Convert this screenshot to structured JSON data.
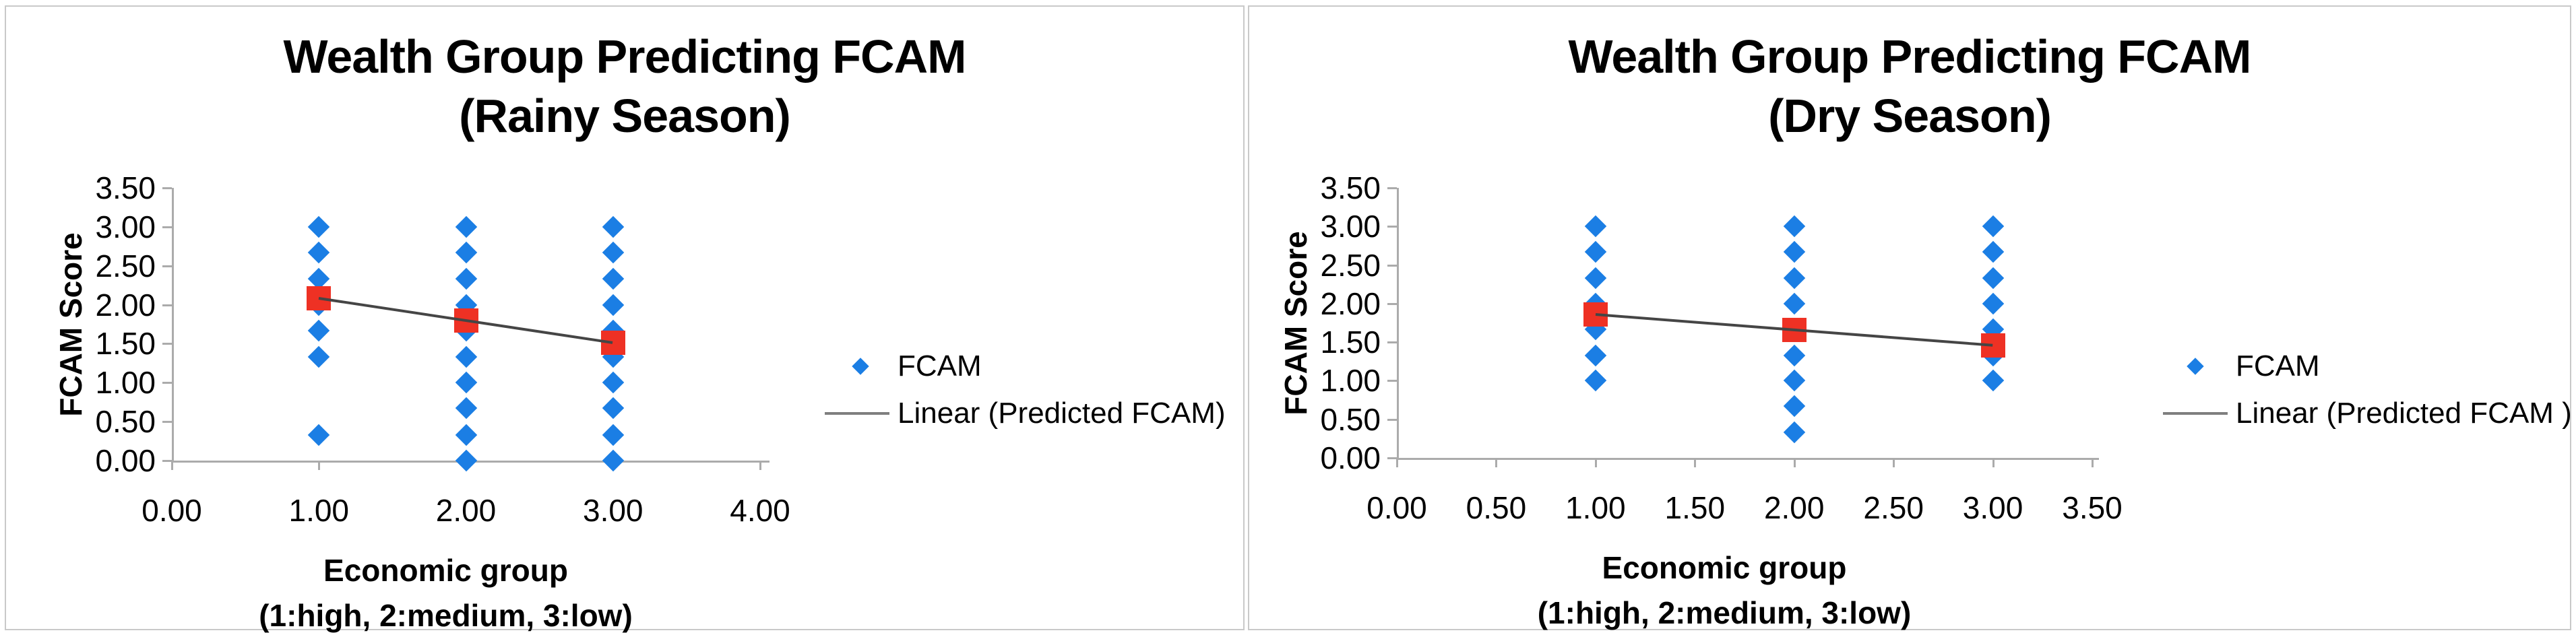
{
  "colors": {
    "marker_blue": "#1B7EE4",
    "marker_red": "#EE3124",
    "trendline_gray": "#454545",
    "axis_gray": "#ABABAB",
    "legend_line_gray": "#7f7f7f",
    "panel_border": "#C9C9C9",
    "text_black": "#000000",
    "background": "#FFFFFF"
  },
  "chart_data": [
    {
      "type": "scatter",
      "title_line1": "Wealth Group Predicting FCAM",
      "title_line2": "(Rainy Season)",
      "ylabel": "FCAM Score",
      "xlabel_line1": "Economic group",
      "xlabel_line2": "(1:high, 2:medium, 3:low)",
      "xlim": [
        0,
        4
      ],
      "ylim": [
        0,
        3.5
      ],
      "grid": false,
      "legend_position": "right",
      "x_tick_labels": [
        "0.00",
        "1.00",
        "2.00",
        "3.00",
        "4.00"
      ],
      "y_tick_labels": [
        "3.50",
        "3.00",
        "2.50",
        "2.00",
        "1.50",
        "1.00",
        "0.50",
        "0.00"
      ],
      "legend": [
        {
          "label": "FCAM",
          "marker": "diamond"
        },
        {
          "label": "Linear (Predicted FCAM)",
          "marker": "line"
        }
      ],
      "series": [
        {
          "name": "FCAM",
          "marker": "diamond",
          "points": [
            [
              1,
              3.0
            ],
            [
              1,
              2.67
            ],
            [
              1,
              2.33
            ],
            [
              1,
              2.0
            ],
            [
              1,
              1.67
            ],
            [
              1,
              1.33
            ],
            [
              1,
              0.33
            ],
            [
              2,
              3.0
            ],
            [
              2,
              2.67
            ],
            [
              2,
              2.33
            ],
            [
              2,
              2.0
            ],
            [
              2,
              1.67
            ],
            [
              2,
              1.33
            ],
            [
              2,
              1.0
            ],
            [
              2,
              0.67
            ],
            [
              2,
              0.33
            ],
            [
              2,
              0.0
            ],
            [
              3,
              3.0
            ],
            [
              3,
              2.67
            ],
            [
              3,
              2.33
            ],
            [
              3,
              2.0
            ],
            [
              3,
              1.67
            ],
            [
              3,
              1.33
            ],
            [
              3,
              1.0
            ],
            [
              3,
              0.67
            ],
            [
              3,
              0.33
            ],
            [
              3,
              0.0
            ]
          ]
        },
        {
          "name": "Predicted FCAM",
          "marker": "square",
          "points": [
            [
              1,
              2.08
            ],
            [
              2,
              1.8
            ],
            [
              3,
              1.51
            ]
          ]
        },
        {
          "name": "Linear (Predicted FCAM)",
          "marker": "trendline",
          "from": [
            1,
            2.08
          ],
          "to": [
            3,
            1.51
          ]
        }
      ]
    },
    {
      "type": "scatter",
      "title_line1": "Wealth Group Predicting FCAM",
      "title_line2": "(Dry Season)",
      "ylabel": "FCAM Score",
      "xlabel_line1": "Economic group",
      "xlabel_line2": "(1:high, 2:medium, 3:low)",
      "xlim": [
        0,
        3.5
      ],
      "ylim": [
        0,
        3.5
      ],
      "grid": false,
      "legend_position": "right",
      "x_tick_labels": [
        "0.00",
        "0.50",
        "1.00",
        "1.50",
        "2.00",
        "2.50",
        "3.00",
        "3.50"
      ],
      "y_tick_labels": [
        "3.50",
        "3.00",
        "2.50",
        "2.00",
        "1.50",
        "1.00",
        "0.50",
        "0.00"
      ],
      "legend": [
        {
          "label": "FCAM",
          "marker": "diamond"
        },
        {
          "label": "Linear (Predicted FCAM )",
          "marker": "line"
        }
      ],
      "series": [
        {
          "name": "FCAM",
          "marker": "diamond",
          "points": [
            [
              1,
              3.0
            ],
            [
              1,
              2.67
            ],
            [
              1,
              2.33
            ],
            [
              1,
              2.0
            ],
            [
              1,
              1.67
            ],
            [
              1,
              1.33
            ],
            [
              1,
              1.0
            ],
            [
              2,
              3.0
            ],
            [
              2,
              2.67
            ],
            [
              2,
              2.33
            ],
            [
              2,
              2.0
            ],
            [
              2,
              1.33
            ],
            [
              2,
              1.0
            ],
            [
              2,
              0.67
            ],
            [
              2,
              0.33
            ],
            [
              3,
              3.0
            ],
            [
              3,
              2.67
            ],
            [
              3,
              2.33
            ],
            [
              3,
              2.0
            ],
            [
              3,
              1.67
            ],
            [
              3,
              1.33
            ],
            [
              3,
              1.0
            ]
          ]
        },
        {
          "name": "Predicted FCAM",
          "marker": "square",
          "points": [
            [
              1,
              1.86
            ],
            [
              2,
              1.66
            ],
            [
              3,
              1.46
            ]
          ]
        },
        {
          "name": "Linear (Predicted FCAM )",
          "marker": "trendline",
          "from": [
            1,
            1.86
          ],
          "to": [
            3,
            1.46
          ]
        }
      ]
    }
  ]
}
